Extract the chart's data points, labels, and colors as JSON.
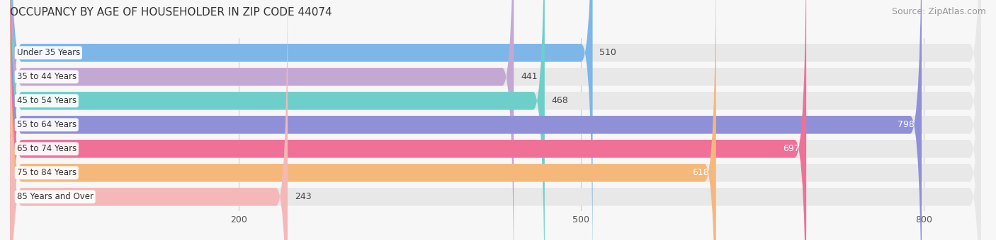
{
  "title": "OCCUPANCY BY AGE OF HOUSEHOLDER IN ZIP CODE 44074",
  "source": "Source: ZipAtlas.com",
  "categories": [
    "Under 35 Years",
    "35 to 44 Years",
    "45 to 54 Years",
    "55 to 64 Years",
    "65 to 74 Years",
    "75 to 84 Years",
    "85 Years and Over"
  ],
  "values": [
    510,
    441,
    468,
    798,
    697,
    618,
    243
  ],
  "bar_colors": [
    "#7eb6e8",
    "#c4a8d4",
    "#6ecfca",
    "#9090d8",
    "#f07098",
    "#f5b87a",
    "#f5b8b8"
  ],
  "bar_bg_color": "#e8e8e8",
  "xlim": [
    0,
    850
  ],
  "xticks": [
    200,
    500,
    800
  ],
  "title_fontsize": 11,
  "source_fontsize": 9,
  "bar_label_fontsize": 9,
  "category_fontsize": 8.5,
  "bar_height": 0.75,
  "white_label_threshold": 580
}
